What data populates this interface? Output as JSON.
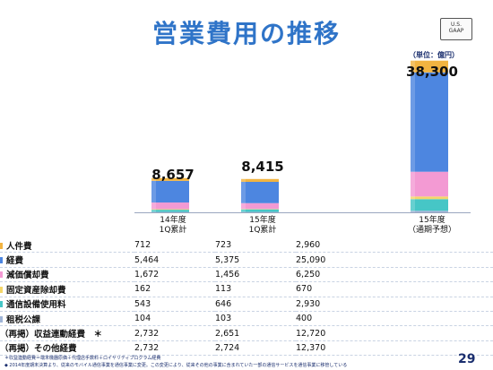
{
  "title": "営業費用の推移",
  "badge": {
    "line1": "U.S.",
    "line2": "GAAP"
  },
  "unit_label": "（単位：億円）",
  "chart_data": {
    "type": "bar",
    "stacked": true,
    "categories": [
      {
        "line1": "14年度",
        "line2": "1Q累計"
      },
      {
        "line1": "15年度",
        "line2": "1Q累計"
      },
      {
        "line1": "15年度",
        "line2": "（通期予想）"
      }
    ],
    "totals": [
      "8,657",
      "8,415",
      "38,300"
    ],
    "series": [
      {
        "name": "人件費",
        "color": "#f2b441",
        "values": [
          712,
          723,
          2960
        ]
      },
      {
        "name": "経費",
        "color": "#4d86e0",
        "values": [
          5464,
          5375,
          25090
        ]
      },
      {
        "name": "減価償却費",
        "color": "#f39ad3",
        "values": [
          1672,
          1456,
          6250
        ]
      },
      {
        "name": "固定資産除却費",
        "color": "#f4d66a",
        "values": [
          162,
          113,
          670
        ]
      },
      {
        "name": "通信設備使用料",
        "color": "#46c6c6",
        "values": [
          543,
          646,
          2930
        ]
      },
      {
        "name": "租税公課",
        "color": "#9fb4d6",
        "values": [
          104,
          103,
          400
        ]
      }
    ]
  },
  "table_rows": [
    {
      "label": "人件費",
      "color": "#f2b441",
      "values": [
        "712",
        "723",
        "2,960"
      ]
    },
    {
      "label": "経費",
      "color": "#4d86e0",
      "values": [
        "5,464",
        "5,375",
        "25,090"
      ]
    },
    {
      "label": "減価償却費",
      "color": "#f39ad3",
      "values": [
        "1,672",
        "1,456",
        "6,250"
      ]
    },
    {
      "label": "固定資産除却費",
      "color": "#f4d66a",
      "values": [
        "162",
        "113",
        "670"
      ]
    },
    {
      "label": "通信設備使用料",
      "color": "#46c6c6",
      "values": [
        "543",
        "646",
        "2,930"
      ]
    },
    {
      "label": "租税公課",
      "color": "#9fb4d6",
      "values": [
        "104",
        "103",
        "400"
      ]
    },
    {
      "label": "（再掲）収益連動経費　＊",
      "color": "",
      "values": [
        "2,732",
        "2,651",
        "12,720"
      ]
    },
    {
      "label": "（再掲）その他経費",
      "color": "",
      "values": [
        "2,732",
        "2,724",
        "12,370"
      ]
    }
  ],
  "footnotes": [
    "＊収益連動経費＝端末機器原価＋代理店手数料＋ロイヤリティプログラム経費",
    "◆ 2014年度期末決算より、従来のモバイル通信事業を通信事業に変更。この変更により、従来その他の事業に含まれていた一部の通信サービスを通信事業に移管している"
  ],
  "page_number": "29"
}
